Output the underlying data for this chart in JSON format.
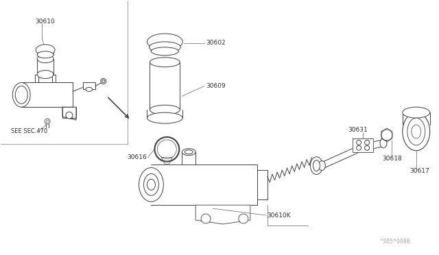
{
  "bg_color": "#ffffff",
  "lc": "#404040",
  "lc_thin": "#505050",
  "label_color": "#303030",
  "fig_width": 6.4,
  "fig_height": 3.72,
  "dpi": 100,
  "watermark": "^305*0086",
  "see_sec": "SEE SEC.470"
}
